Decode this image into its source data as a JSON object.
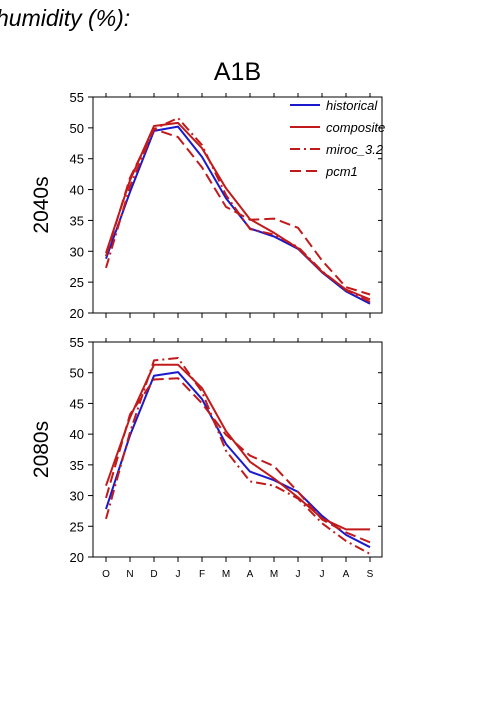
{
  "heading": "humidity (%):",
  "scenario": "A1B",
  "colors": {
    "historical": "#1a1acc",
    "models": "#c21a1a"
  },
  "chart_data": [
    {
      "type": "line",
      "row_label": "2040s",
      "categories": [
        "O",
        "N",
        "D",
        "J",
        "F",
        "M",
        "A",
        "M",
        "J",
        "J",
        "A",
        "S"
      ],
      "ylim": [
        20,
        55
      ],
      "yticks": [
        20,
        25,
        30,
        35,
        40,
        45,
        50,
        55
      ],
      "show_xtick_labels": false,
      "series": [
        {
          "name": "historical",
          "style": "solid",
          "color": "#1a1acc",
          "values": [
            28.8,
            39.6,
            49.5,
            50.2,
            45.3,
            38.6,
            33.7,
            32.4,
            30.4,
            26.6,
            23.5,
            21.5
          ]
        },
        {
          "name": "composite",
          "style": "solid",
          "color": "#c21a1a",
          "values": [
            29.7,
            41.5,
            50.3,
            50.8,
            46.7,
            40.2,
            35.2,
            33.0,
            30.5,
            26.7,
            23.8,
            22.2
          ]
        },
        {
          "name": "miroc_3.2",
          "style": "dashdot",
          "color": "#c21a1a",
          "values": [
            27.3,
            40.5,
            49.8,
            51.6,
            47.2,
            39.1,
            33.6,
            32.7,
            30.7,
            26.8,
            23.7,
            21.8
          ]
        },
        {
          "name": "pcm1",
          "style": "dash",
          "color": "#c21a1a",
          "values": [
            29.2,
            41.9,
            49.8,
            48.5,
            43.6,
            37.2,
            35.1,
            35.3,
            33.8,
            28.5,
            24.2,
            23.0
          ]
        }
      ]
    },
    {
      "type": "line",
      "row_label": "2080s",
      "categories": [
        "O",
        "N",
        "D",
        "J",
        "F",
        "M",
        "A",
        "M",
        "J",
        "J",
        "A",
        "S"
      ],
      "ylim": [
        20,
        55
      ],
      "yticks": [
        20,
        25,
        30,
        35,
        40,
        45,
        50,
        55
      ],
      "show_xtick_labels": true,
      "series": [
        {
          "name": "historical",
          "style": "solid",
          "color": "#1a1acc",
          "values": [
            27.8,
            39.8,
            49.5,
            50.1,
            45.7,
            38.4,
            33.9,
            32.5,
            30.6,
            26.7,
            23.6,
            21.6
          ]
        },
        {
          "name": "composite",
          "style": "solid",
          "color": "#c21a1a",
          "values": [
            31.6,
            42.7,
            51.3,
            51.3,
            47.5,
            40.5,
            35.5,
            32.8,
            29.7,
            26.3,
            24.5,
            24.5
          ]
        },
        {
          "name": "miroc_3.2",
          "style": "dashdot",
          "color": "#c21a1a",
          "values": [
            26.2,
            40.3,
            52.0,
            52.4,
            46.9,
            37.3,
            32.3,
            31.6,
            29.5,
            25.5,
            22.6,
            20.5
          ]
        },
        {
          "name": "pcm1",
          "style": "dash",
          "color": "#c21a1a",
          "values": [
            29.6,
            43.2,
            48.9,
            49.1,
            45.0,
            39.9,
            36.5,
            34.8,
            30.6,
            26.1,
            24.0,
            22.4
          ]
        }
      ]
    }
  ]
}
